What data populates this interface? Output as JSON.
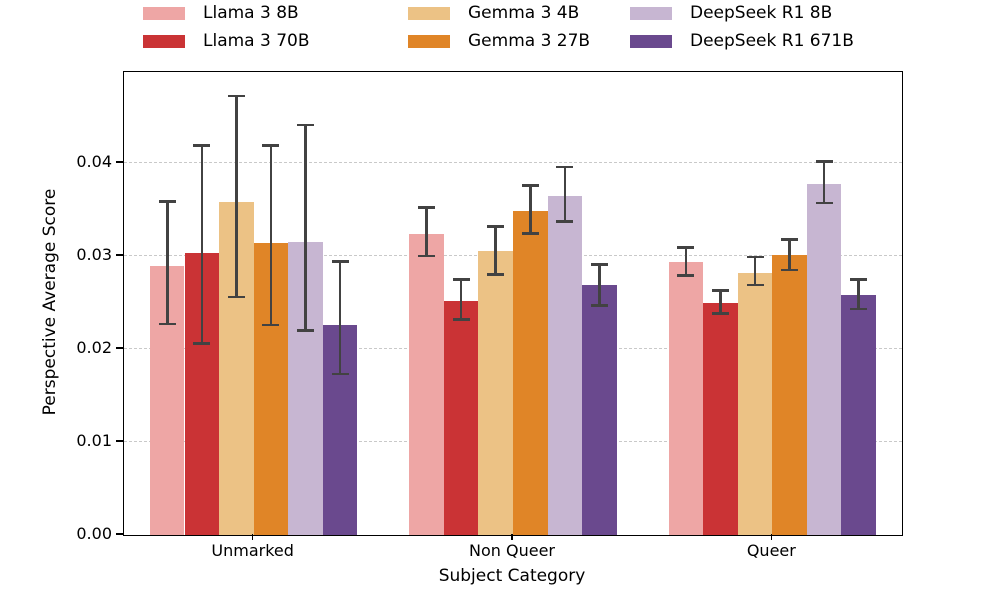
{
  "figure": {
    "background": "#ffffff",
    "axis_color": "#000000",
    "text_color": "#000000"
  },
  "chart_data": {
    "type": "bar",
    "title": "",
    "xlabel": "Subject Category",
    "ylabel": "Perspective Average Score",
    "categories": [
      "Unmarked",
      "Non Queer",
      "Queer"
    ],
    "series": [
      {
        "name": "Llama 3 8B",
        "color": "#eea6a5",
        "values": [
          0.0289,
          0.0324,
          0.0294
        ],
        "err_low": [
          0.0227,
          0.03,
          0.0279
        ],
        "err_high": [
          0.0359,
          0.0352,
          0.0309
        ]
      },
      {
        "name": "Llama 3 70B",
        "color": "#ca3335",
        "values": [
          0.0303,
          0.0252,
          0.025
        ],
        "err_low": [
          0.0206,
          0.0232,
          0.0238
        ],
        "err_high": [
          0.0419,
          0.0275,
          0.0263
        ]
      },
      {
        "name": "Gemma 3 4B",
        "color": "#ecc285",
        "values": [
          0.0358,
          0.0305,
          0.0282
        ],
        "err_low": [
          0.0256,
          0.028,
          0.0269
        ],
        "err_high": [
          0.0472,
          0.0332,
          0.0299
        ]
      },
      {
        "name": "Gemma 3 27B",
        "color": "#e08527",
        "values": [
          0.0314,
          0.0348,
          0.0301
        ],
        "err_low": [
          0.0226,
          0.0324,
          0.0285
        ],
        "err_high": [
          0.0419,
          0.0376,
          0.0318
        ]
      },
      {
        "name": "DeepSeek R1 8B",
        "color": "#c7b6d2",
        "values": [
          0.0315,
          0.0365,
          0.0378
        ],
        "err_low": [
          0.022,
          0.0337,
          0.0357
        ],
        "err_high": [
          0.0441,
          0.0396,
          0.0402
        ]
      },
      {
        "name": "DeepSeek R1 671B",
        "color": "#6a498e",
        "values": [
          0.0226,
          0.0269,
          0.0258
        ],
        "err_low": [
          0.0173,
          0.0247,
          0.0243
        ],
        "err_high": [
          0.0294,
          0.0291,
          0.0275
        ]
      }
    ],
    "ylim": [
      0,
      0.0498
    ],
    "yticks": [
      0,
      0.01,
      0.02,
      0.03,
      0.04
    ],
    "ytick_labels": [
      "0.00",
      "0.01",
      "0.02",
      "0.03",
      "0.04"
    ],
    "group_width_fraction": 0.8,
    "grid": {
      "axis": "y",
      "style": "dashed",
      "color": "#c9c9c9"
    },
    "error_bar_color": "#424242",
    "legend": {
      "position": "top",
      "columns": 3,
      "order": "column-major"
    }
  }
}
